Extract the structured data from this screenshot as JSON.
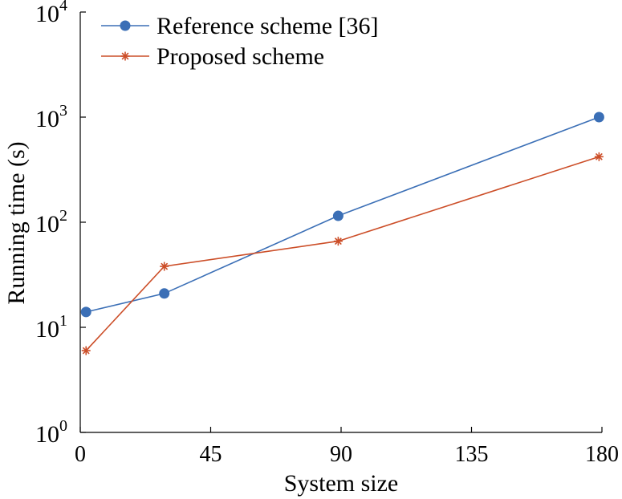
{
  "chart_data": {
    "type": "line",
    "xlabel": "System size",
    "ylabel": "Running time (s)",
    "xlim": [
      0,
      180
    ],
    "ylim": [
      1,
      10000
    ],
    "yscale": "log",
    "grid": false,
    "legend_position": "top-left",
    "xticks": [
      {
        "value": 0,
        "label": "0"
      },
      {
        "value": 45,
        "label": "45"
      },
      {
        "value": 90,
        "label": "90"
      },
      {
        "value": 135,
        "label": "135"
      },
      {
        "value": 180,
        "label": "180"
      }
    ],
    "yticks": [
      {
        "value": 1,
        "base": "10",
        "exp": "0"
      },
      {
        "value": 10,
        "base": "10",
        "exp": "1"
      },
      {
        "value": 100,
        "base": "10",
        "exp": "2"
      },
      {
        "value": 1000,
        "base": "10",
        "exp": "3"
      },
      {
        "value": 10000,
        "base": "10",
        "exp": "4"
      }
    ],
    "series": [
      {
        "name": "Reference scheme [36]",
        "color": "#3b6fb6",
        "marker": "circle",
        "x": [
          2,
          29,
          89,
          179
        ],
        "y": [
          14,
          21,
          115,
          1000
        ]
      },
      {
        "name": "Proposed scheme",
        "color": "#cc4e28",
        "marker": "asterisk",
        "x": [
          2,
          29,
          89,
          179
        ],
        "y": [
          6,
          38,
          66,
          420
        ]
      }
    ]
  }
}
